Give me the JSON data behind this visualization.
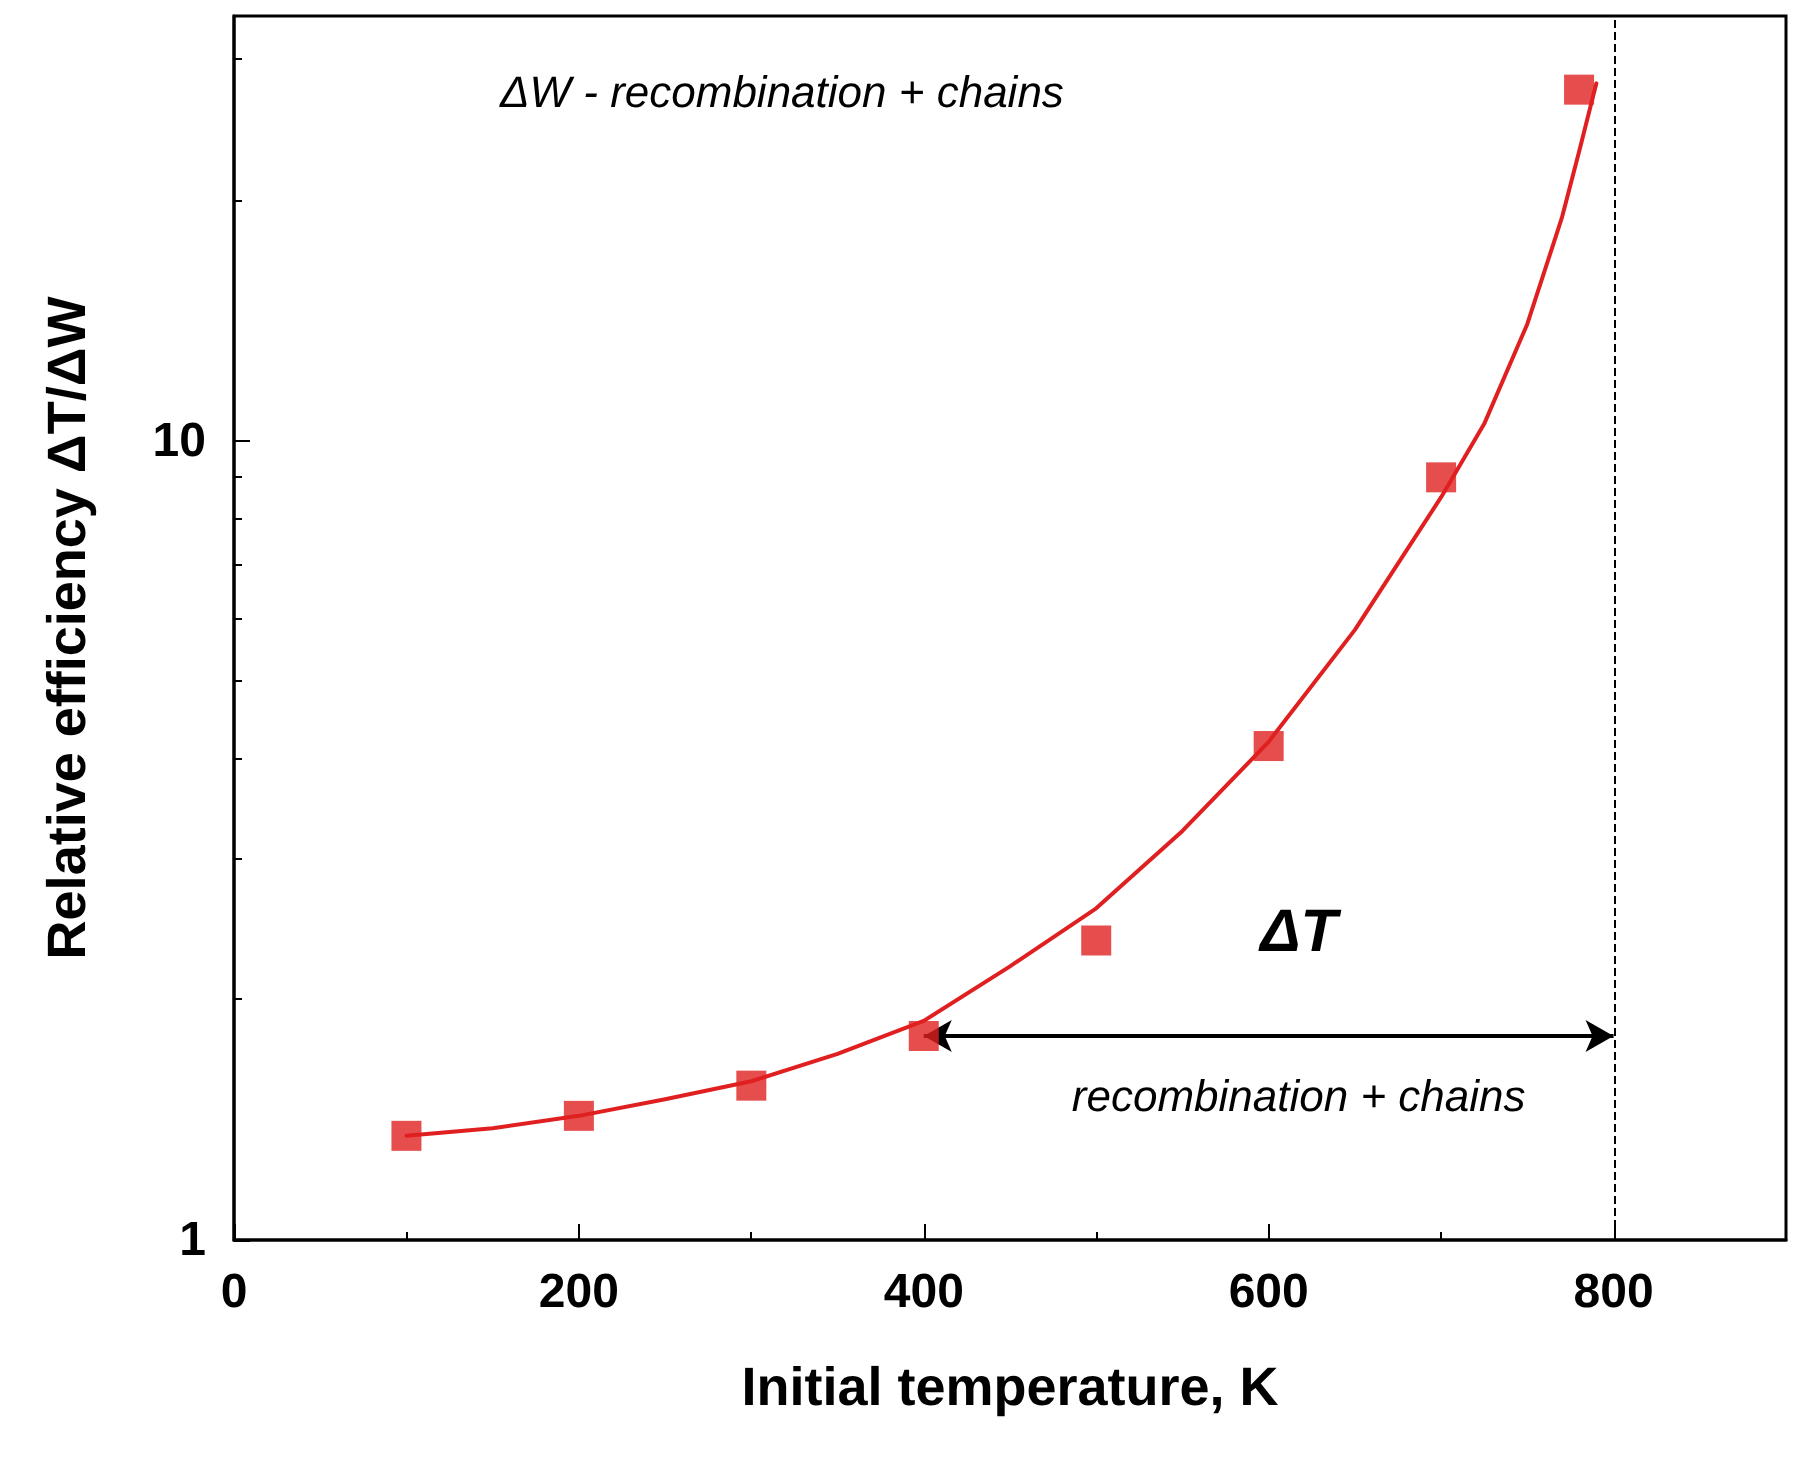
{
  "chart_data": {
    "type": "scatter",
    "xlabel": "Initial temperature, K",
    "ylabel": "Relative efficiency ΔT/ΔW",
    "xlim": [
      0,
      900
    ],
    "xticks": [
      0,
      200,
      400,
      600,
      800
    ],
    "ylim": [
      1,
      34
    ],
    "yticks": [
      1,
      10
    ],
    "log": "y",
    "grid": false,
    "series": [
      {
        "marker": "square",
        "color": "#e02020",
        "x": [
          100,
          200,
          300,
          400,
          500,
          600,
          700,
          780
        ],
        "values": [
          1.35,
          1.43,
          1.56,
          1.8,
          2.37,
          4.15,
          9.0,
          27.5
        ]
      },
      {
        "type": "line",
        "marker": "none",
        "color": "#e02020",
        "line_style": "solid",
        "x": [
          100,
          150,
          200,
          250,
          300,
          350,
          400,
          450,
          500,
          550,
          600,
          650,
          700,
          725,
          750,
          770,
          780,
          790
        ],
        "values": [
          1.35,
          1.38,
          1.43,
          1.5,
          1.58,
          1.71,
          1.88,
          2.2,
          2.6,
          3.25,
          4.2,
          5.8,
          8.5,
          10.5,
          14,
          19,
          23,
          28
        ]
      }
    ],
    "ref_lines": [
      {
        "axis": "x",
        "value": 800,
        "line_style": "dashed",
        "color": "#000000"
      }
    ],
    "annotations": [
      "ΔW - recombination + chains",
      "ΔT",
      "recombination + chains"
    ]
  }
}
